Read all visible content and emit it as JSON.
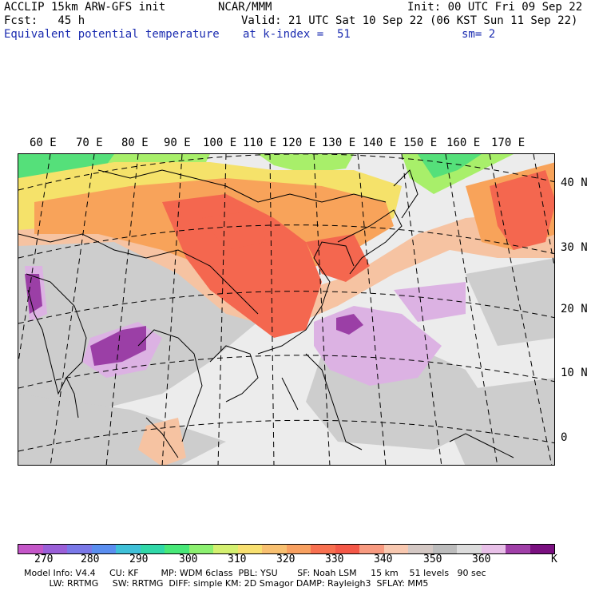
{
  "header": {
    "left_line1": "ACCLIP 15km ARW-GFS init",
    "left_line2": "Fcst:   45 h",
    "field_name": "Equivalent potential temperature",
    "center_line1": "NCAR/MMM",
    "valid_line": "Valid: 21 UTC Sat 10 Sep 22 (06 KST Sun 11 Sep 22)",
    "init_line": "Init: 00 UTC Fri 09 Sep 22",
    "level_line": "at k-index =  51",
    "smooth_line": "sm= 2"
  },
  "map": {
    "lon_labels": [
      "60 E",
      "70 E",
      "80 E",
      "90 E",
      "100 E",
      "110 E",
      "120 E",
      "130 E",
      "140 E",
      "150 E",
      "160 E",
      "170 E"
    ],
    "lat_labels": [
      "40 N",
      "30 N",
      "20 N",
      "10 N",
      "0"
    ],
    "colors": {
      "background": "#ececec",
      "green": "#55e07a",
      "light_green": "#a8ef6a",
      "yellow": "#f5e26a",
      "orange": "#f8a35a",
      "red_orange": "#f4674f",
      "peach": "#f6c3a2",
      "gray": "#c8c8c8",
      "light_purple": "#dcb2e3",
      "purple": "#9b3fa6",
      "coast": "#000000"
    }
  },
  "colorbar": {
    "colors": [
      "#c456c8",
      "#9a5fd8",
      "#7a78e8",
      "#5a8ef0",
      "#3fc0d8",
      "#30d8a8",
      "#48e878",
      "#8cf070",
      "#d4f070",
      "#f8e070",
      "#f8c070",
      "#f8a060",
      "#f87050",
      "#f45848",
      "#f89a80",
      "#f8c8b0",
      "#d4c8c4",
      "#bcbcbc",
      "#dcdcdc",
      "#e8c0e8",
      "#a040a8",
      "#7a1080"
    ],
    "tick_labels": [
      "270",
      "280",
      "290",
      "300",
      "310",
      "320",
      "330",
      "340",
      "350",
      "360"
    ],
    "unit": "K"
  },
  "model_info": {
    "line1": "Model Info: V4.4     CU: KF        MP: WDM 6class  PBL: YSU       SF: Noah LSM     15 km    51 levels   90 sec",
    "line2": "         LW: RRTMG     SW: RRTMG  DIFF: simple KM: 2D Smagor DAMP: Rayleigh3  SFLAY: MM5"
  }
}
